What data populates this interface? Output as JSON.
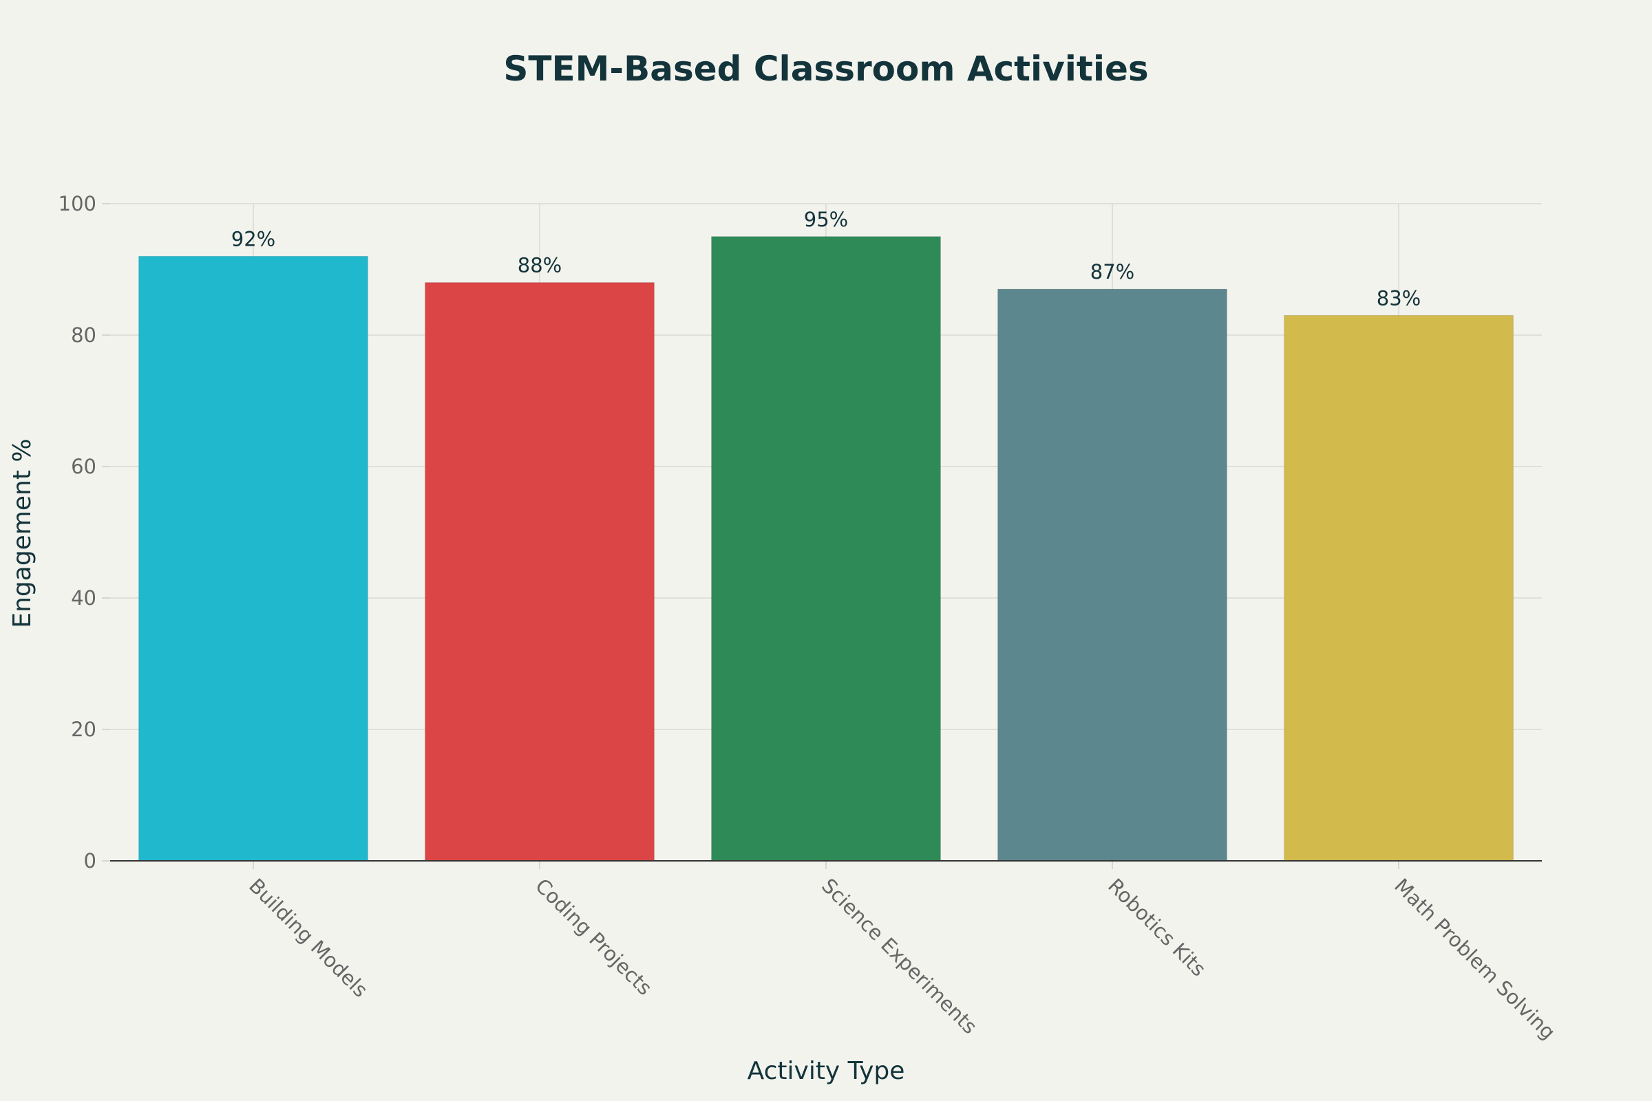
{
  "chart_data": {
    "type": "bar",
    "title": "STEM-Based Classroom Activities",
    "xlabel": "Activity Type",
    "ylabel": "Engagement %",
    "categories": [
      "Building Models",
      "Coding Projects",
      "Science Experiments",
      "Robotics Kits",
      "Math Problem Solving"
    ],
    "values": [
      92,
      88,
      95,
      87,
      83
    ],
    "data_labels": [
      "92%",
      "88%",
      "95%",
      "87%",
      "83%"
    ],
    "colors": [
      "#1fb8cd",
      "#db4545",
      "#2e8b57",
      "#5d878f",
      "#d2ba4c"
    ],
    "ylim": [
      0,
      100
    ],
    "yticks": [
      0,
      20,
      40,
      60,
      80,
      100
    ],
    "grid": true,
    "legend": "none"
  }
}
